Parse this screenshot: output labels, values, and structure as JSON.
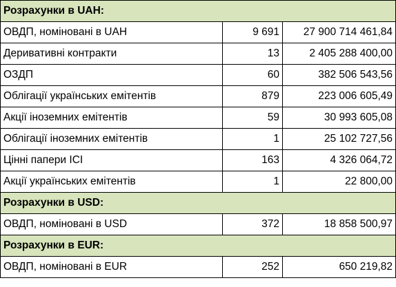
{
  "sections": [
    {
      "title": "Розрахунки в UAH:",
      "rows": [
        {
          "name": "ОВДП, номіновані в UAH",
          "count": "9 691",
          "amount": "27 900 714 461,84"
        },
        {
          "name": "Деривативні контракти",
          "count": "13",
          "amount": "2 405 288 400,00"
        },
        {
          "name": "ОЗДП",
          "count": "60",
          "amount": "382 506 543,56"
        },
        {
          "name": "Облігації українських емітентів",
          "count": "879",
          "amount": "223 006 605,49"
        },
        {
          "name": "Акції іноземних емітентів",
          "count": "59",
          "amount": "30 993 605,08"
        },
        {
          "name": "Облігації іноземних емітентів",
          "count": "1",
          "amount": "25 102 727,56"
        },
        {
          "name": "Цінні папери ІСІ",
          "count": "163",
          "amount": "4 326 064,72"
        },
        {
          "name": "Акції українських емітентів",
          "count": "1",
          "amount": "22 800,00"
        }
      ]
    },
    {
      "title": "Розрахунки в USD:",
      "rows": [
        {
          "name": "ОВДП, номіновані в USD",
          "count": "372",
          "amount": "18 858 500,97"
        }
      ]
    },
    {
      "title": "Розрахунки в EUR:",
      "rows": [
        {
          "name": "ОВДП, номіновані в EUR",
          "count": "252",
          "amount": "650 219,82"
        }
      ]
    }
  ],
  "colors": {
    "section_header_bg": "#d7e4bc",
    "border": "#000000"
  }
}
